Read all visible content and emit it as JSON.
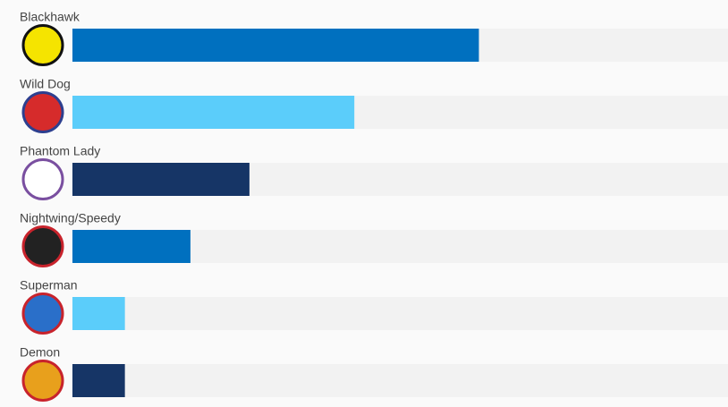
{
  "chart_data": {
    "type": "bar",
    "orientation": "horizontal",
    "categories": [
      "Blackhawk",
      "Wild Dog",
      "Phantom Lady",
      "Nightwing/Speedy",
      "Superman",
      "Demon"
    ],
    "values": [
      62,
      43,
      27,
      18,
      8,
      8
    ],
    "colors": [
      "#0070bf",
      "#5bcdfa",
      "#163566",
      "#0070bf",
      "#5bcdfa",
      "#163566"
    ],
    "xlim": [
      0,
      100
    ]
  }
}
